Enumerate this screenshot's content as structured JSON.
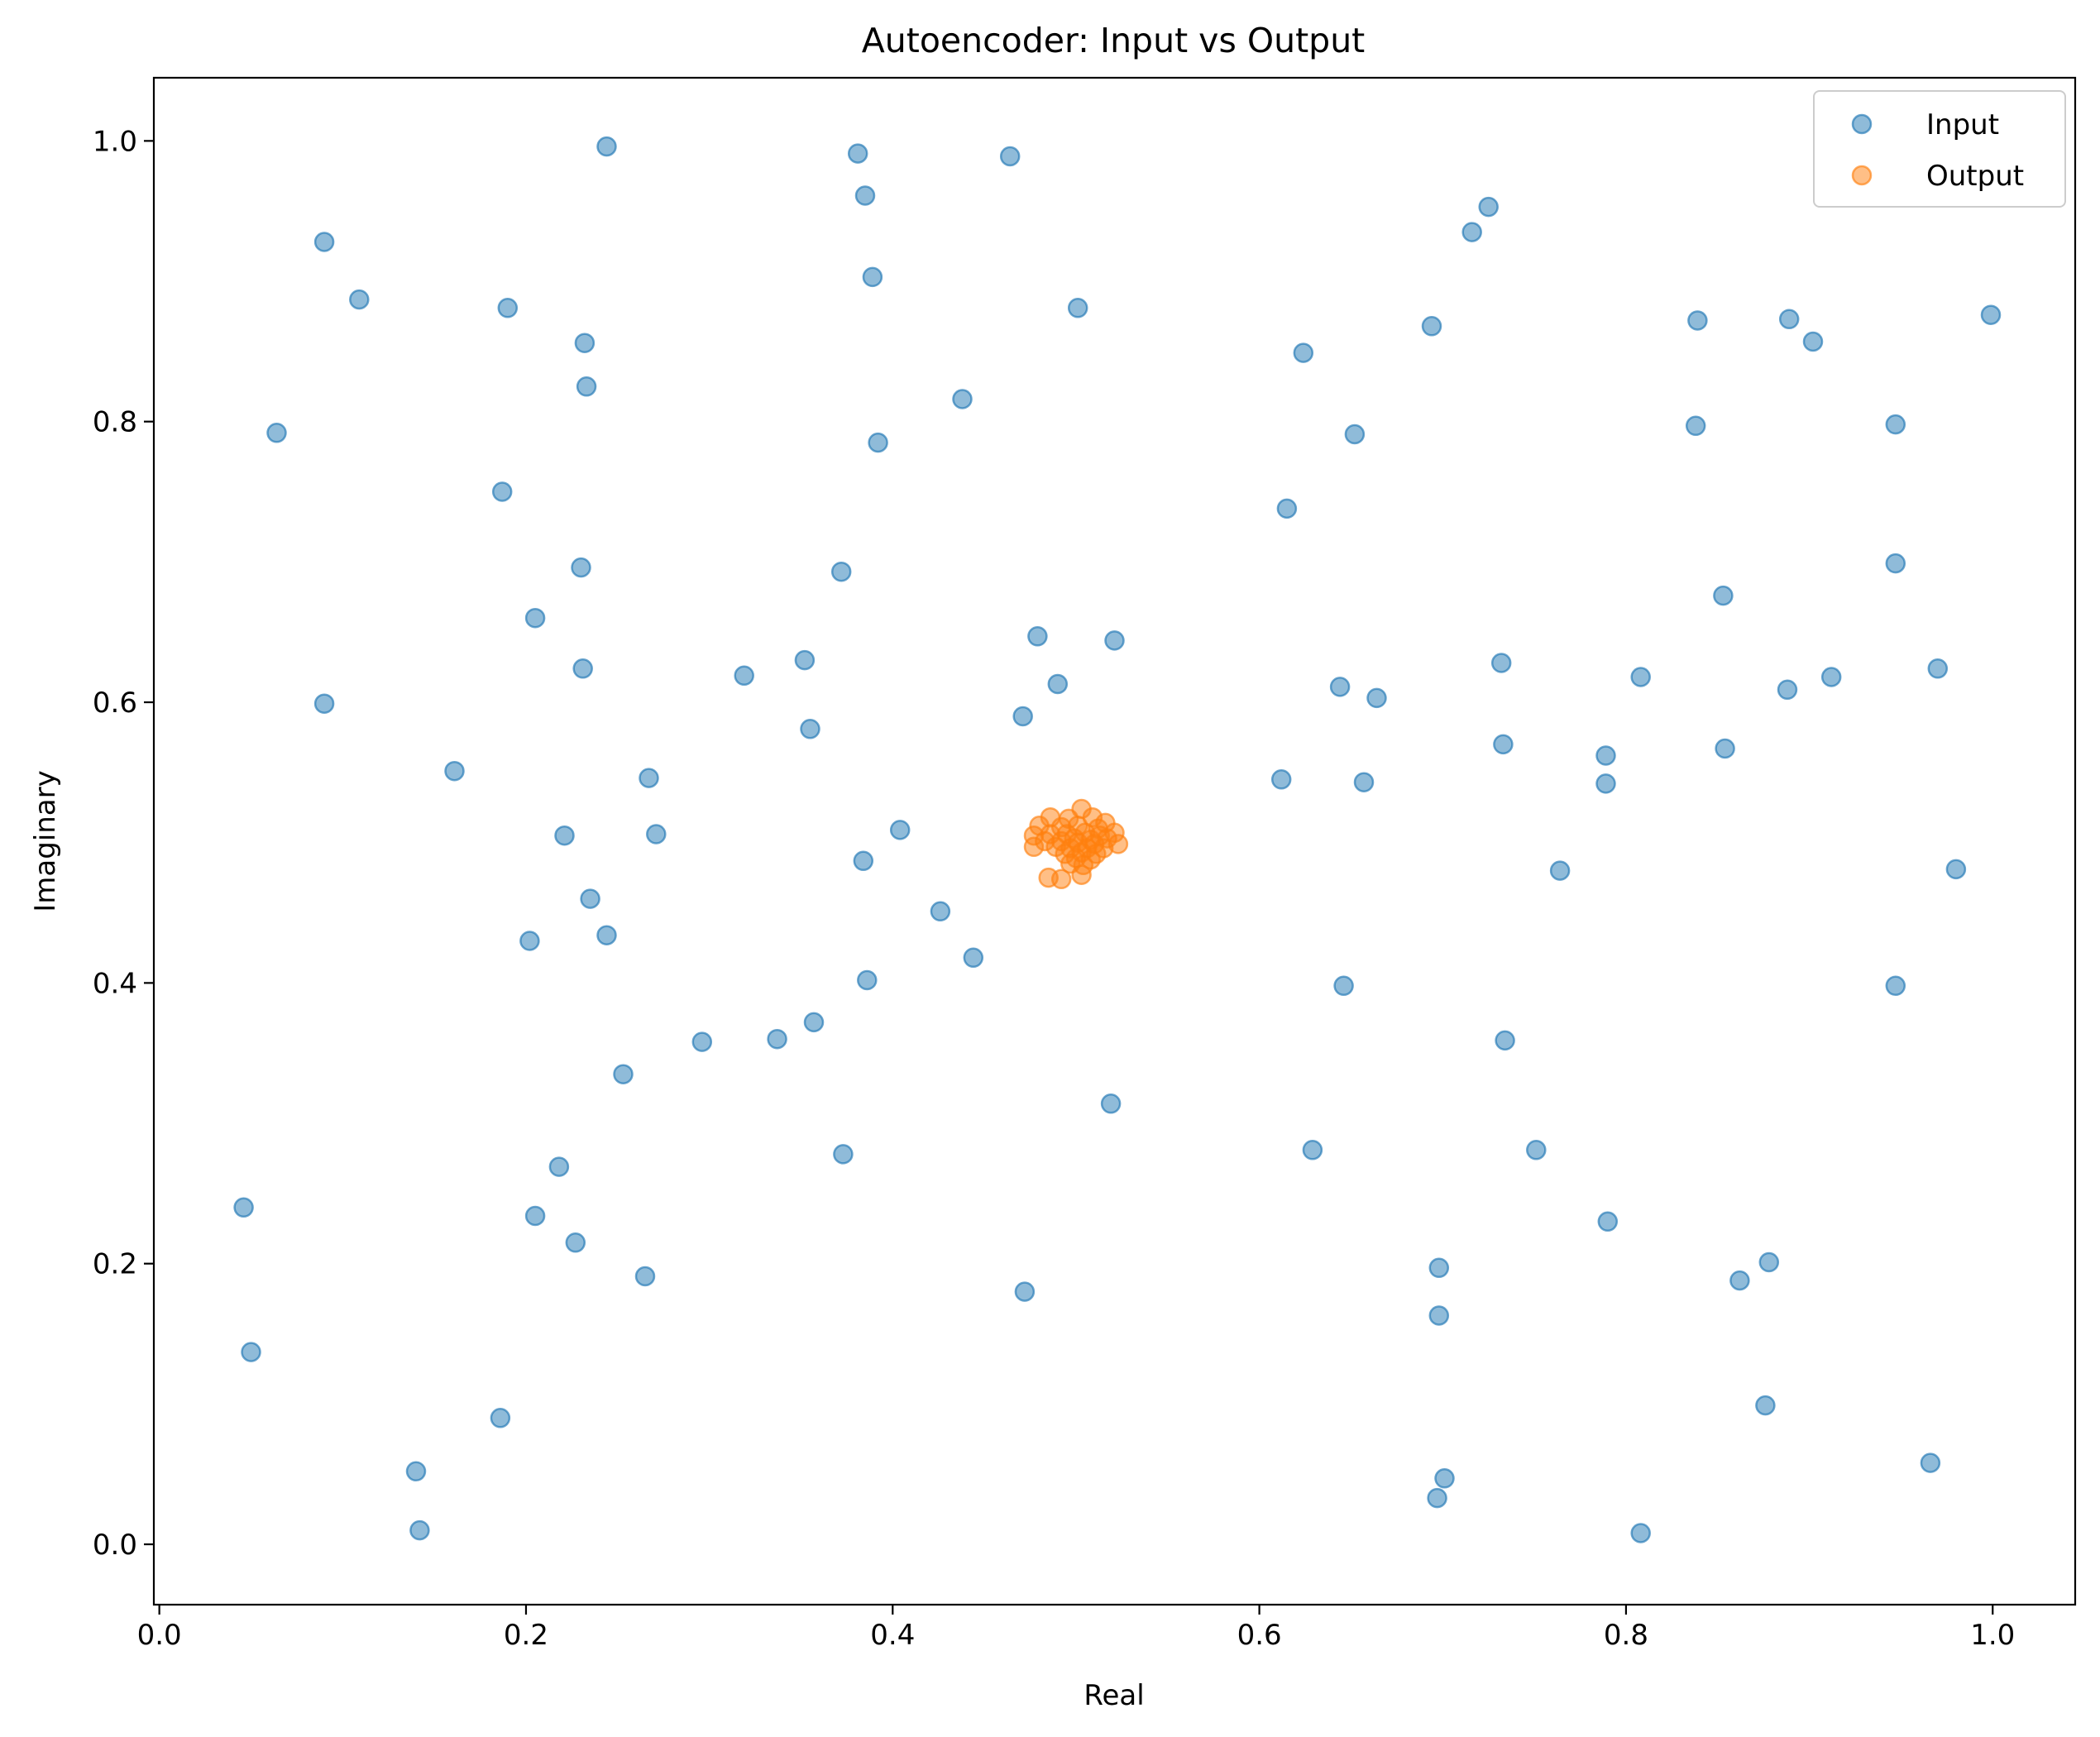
{
  "chart_data": {
    "type": "scatter",
    "title": "Autoencoder: Input vs Output",
    "xlabel": "Real",
    "ylabel": "Imaginary",
    "xlim": [
      -0.003,
      1.045
    ],
    "ylim": [
      -0.043,
      1.045
    ],
    "xticks": [
      "0.0",
      "0.2",
      "0.4",
      "0.6",
      "0.8",
      "1.0"
    ],
    "yticks": [
      "0.0",
      "0.2",
      "0.4",
      "0.6",
      "0.8",
      "1.0"
    ],
    "grid": false,
    "legend_position": "top-right",
    "series": [
      {
        "name": "Input",
        "color": "#1f77b4",
        "alpha": 0.5,
        "points": [
          [
            0.244,
            0.996
          ],
          [
            0.381,
            0.991
          ],
          [
            0.464,
            0.989
          ],
          [
            0.385,
            0.961
          ],
          [
            0.09,
            0.928
          ],
          [
            0.725,
            0.953
          ],
          [
            0.716,
            0.935
          ],
          [
            0.109,
            0.887
          ],
          [
            0.389,
            0.903
          ],
          [
            0.19,
            0.881
          ],
          [
            0.501,
            0.881
          ],
          [
            0.999,
            0.876
          ],
          [
            0.839,
            0.872
          ],
          [
            0.889,
            0.873
          ],
          [
            0.694,
            0.868
          ],
          [
            0.232,
            0.856
          ],
          [
            0.902,
            0.857
          ],
          [
            0.624,
            0.849
          ],
          [
            0.233,
            0.825
          ],
          [
            0.438,
            0.816
          ],
          [
            0.064,
            0.792
          ],
          [
            0.838,
            0.797
          ],
          [
            0.947,
            0.798
          ],
          [
            0.652,
            0.791
          ],
          [
            0.392,
            0.785
          ],
          [
            0.187,
            0.75
          ],
          [
            0.615,
            0.738
          ],
          [
            0.23,
            0.696
          ],
          [
            0.372,
            0.693
          ],
          [
            0.947,
            0.699
          ],
          [
            0.853,
            0.676
          ],
          [
            0.205,
            0.66
          ],
          [
            0.479,
            0.647
          ],
          [
            0.521,
            0.644
          ],
          [
            0.231,
            0.624
          ],
          [
            0.352,
            0.63
          ],
          [
            0.319,
            0.619
          ],
          [
            0.732,
            0.628
          ],
          [
            0.808,
            0.618
          ],
          [
            0.97,
            0.624
          ],
          [
            0.912,
            0.618
          ],
          [
            0.49,
            0.613
          ],
          [
            0.644,
            0.611
          ],
          [
            0.888,
            0.609
          ],
          [
            0.664,
            0.603
          ],
          [
            0.09,
            0.599
          ],
          [
            0.471,
            0.59
          ],
          [
            0.355,
            0.581
          ],
          [
            0.733,
            0.57
          ],
          [
            0.789,
            0.562
          ],
          [
            0.854,
            0.567
          ],
          [
            0.161,
            0.551
          ],
          [
            0.267,
            0.546
          ],
          [
            0.612,
            0.545
          ],
          [
            0.657,
            0.543
          ],
          [
            0.789,
            0.542
          ],
          [
            0.221,
            0.505
          ],
          [
            0.271,
            0.506
          ],
          [
            0.404,
            0.509
          ],
          [
            0.384,
            0.487
          ],
          [
            0.764,
            0.48
          ],
          [
            0.98,
            0.481
          ],
          [
            0.235,
            0.46
          ],
          [
            0.426,
            0.451
          ],
          [
            0.244,
            0.434
          ],
          [
            0.202,
            0.43
          ],
          [
            0.444,
            0.418
          ],
          [
            0.386,
            0.402
          ],
          [
            0.646,
            0.398
          ],
          [
            0.947,
            0.398
          ],
          [
            0.357,
            0.372
          ],
          [
            0.296,
            0.358
          ],
          [
            0.337,
            0.36
          ],
          [
            0.734,
            0.359
          ],
          [
            0.253,
            0.335
          ],
          [
            0.519,
            0.314
          ],
          [
            0.373,
            0.278
          ],
          [
            0.629,
            0.281
          ],
          [
            0.751,
            0.281
          ],
          [
            0.218,
            0.269
          ],
          [
            0.046,
            0.24
          ],
          [
            0.205,
            0.234
          ],
          [
            0.79,
            0.23
          ],
          [
            0.227,
            0.215
          ],
          [
            0.698,
            0.197
          ],
          [
            0.878,
            0.201
          ],
          [
            0.265,
            0.191
          ],
          [
            0.472,
            0.18
          ],
          [
            0.862,
            0.188
          ],
          [
            0.698,
            0.163
          ],
          [
            0.05,
            0.137
          ],
          [
            0.186,
            0.09
          ],
          [
            0.876,
            0.099
          ],
          [
            0.14,
            0.052
          ],
          [
            0.966,
            0.058
          ],
          [
            0.701,
            0.047
          ],
          [
            0.697,
            0.033
          ],
          [
            0.142,
            0.01
          ],
          [
            0.808,
            0.008
          ]
        ]
      },
      {
        "name": "Output",
        "color": "#ff7f0e",
        "alpha": 0.5,
        "points": [
          [
            0.503,
            0.524
          ],
          [
            0.486,
            0.518
          ],
          [
            0.496,
            0.517
          ],
          [
            0.509,
            0.518
          ],
          [
            0.516,
            0.514
          ],
          [
            0.48,
            0.512
          ],
          [
            0.492,
            0.511
          ],
          [
            0.501,
            0.512
          ],
          [
            0.512,
            0.51
          ],
          [
            0.521,
            0.507
          ],
          [
            0.477,
            0.505
          ],
          [
            0.486,
            0.506
          ],
          [
            0.495,
            0.506
          ],
          [
            0.505,
            0.507
          ],
          [
            0.513,
            0.505
          ],
          [
            0.499,
            0.503
          ],
          [
            0.508,
            0.502
          ],
          [
            0.517,
            0.503
          ],
          [
            0.483,
            0.501
          ],
          [
            0.492,
            0.501
          ],
          [
            0.501,
            0.5
          ],
          [
            0.51,
            0.499
          ],
          [
            0.523,
            0.499
          ],
          [
            0.477,
            0.497
          ],
          [
            0.489,
            0.497
          ],
          [
            0.497,
            0.496
          ],
          [
            0.506,
            0.496
          ],
          [
            0.515,
            0.496
          ],
          [
            0.494,
            0.492
          ],
          [
            0.503,
            0.493
          ],
          [
            0.511,
            0.492
          ],
          [
            0.5,
            0.489
          ],
          [
            0.508,
            0.488
          ],
          [
            0.497,
            0.485
          ],
          [
            0.504,
            0.484
          ],
          [
            0.485,
            0.475
          ],
          [
            0.492,
            0.474
          ],
          [
            0.503,
            0.477
          ]
        ]
      }
    ]
  }
}
